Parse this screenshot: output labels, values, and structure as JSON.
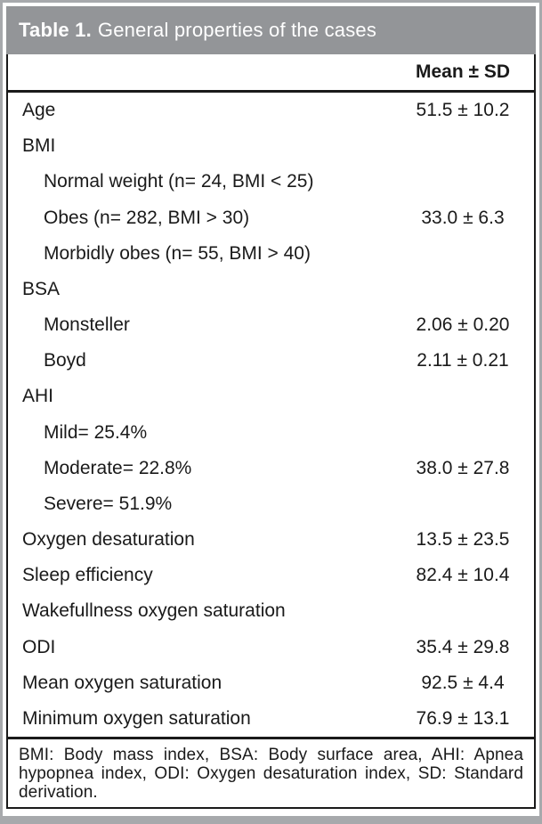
{
  "title": {
    "label": "Table 1.",
    "caption": "General properties of the cases"
  },
  "header": {
    "value_col": "Mean ± SD"
  },
  "rows": [
    {
      "label": "Age",
      "value": "51.5 ± 10.2",
      "indent": false
    },
    {
      "label": "BMI",
      "value": "",
      "indent": false
    },
    {
      "label": "Normal weight (n= 24, BMI < 25)",
      "value": "",
      "indent": true
    },
    {
      "label": "Obes (n= 282, BMI > 30)",
      "value": "33.0 ± 6.3",
      "indent": true
    },
    {
      "label": "Morbidly obes (n= 55, BMI > 40)",
      "value": "",
      "indent": true
    },
    {
      "label": "BSA",
      "value": "",
      "indent": false
    },
    {
      "label": "Monsteller",
      "value": "2.06 ± 0.20",
      "indent": true
    },
    {
      "label": "Boyd",
      "value": "2.11 ± 0.21",
      "indent": true
    },
    {
      "label": "AHI",
      "value": "",
      "indent": false
    },
    {
      "label": "Mild= 25.4%",
      "value": "",
      "indent": true
    },
    {
      "label": "Moderate= 22.8%",
      "value": "38.0 ± 27.8",
      "indent": true
    },
    {
      "label": "Severe= 51.9%",
      "value": "",
      "indent": true
    },
    {
      "label": "Oxygen desaturation",
      "value": "13.5 ± 23.5",
      "indent": false
    },
    {
      "label": "Sleep efficiency",
      "value": "82.4 ± 10.4",
      "indent": false
    },
    {
      "label": "Wakefullness oxygen saturation",
      "value": "",
      "indent": false
    },
    {
      "label": "ODI",
      "value": "35.4 ± 29.8",
      "indent": false
    },
    {
      "label": "Mean oxygen saturation",
      "value": "92.5 ± 4.4",
      "indent": false
    },
    {
      "label": "Minimum oxygen saturation",
      "value": "76.9 ± 13.1",
      "indent": false
    }
  ],
  "footnote": "BMI: Body mass index, BSA: Body surface area, AHI: Apnea hypopnea index, ODI: Oxygen desaturation index, SD: Standard derivation.",
  "colors": {
    "title_bar_gray": "#939598",
    "frame_gray": "#a7a9ac",
    "border_black": "#1a1a1a",
    "title_text": "#ffffff"
  }
}
